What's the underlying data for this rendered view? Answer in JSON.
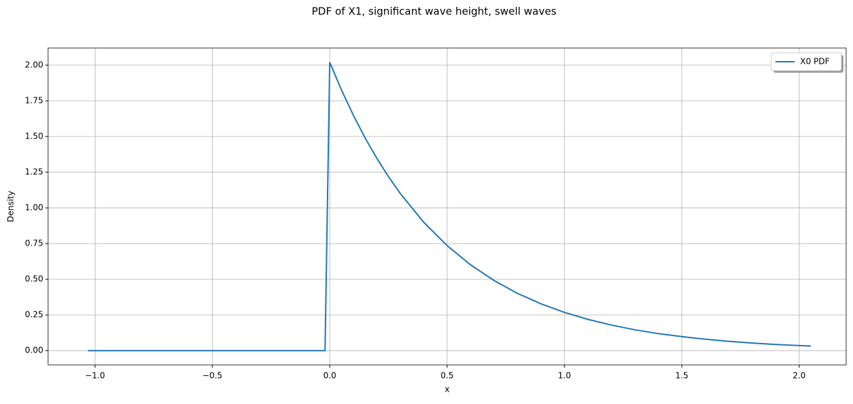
{
  "chart_data": {
    "type": "line",
    "title": "PDF of X1, significant wave height, swell waves",
    "x_label": "x",
    "y_label": "Density",
    "x": [
      -1.03,
      -0.5,
      -0.02,
      0.0,
      0.05,
      0.1,
      0.15,
      0.2,
      0.25,
      0.3,
      0.4,
      0.5,
      0.6,
      0.7,
      0.8,
      0.9,
      1.0,
      1.1,
      1.2,
      1.3,
      1.4,
      1.5,
      1.6,
      1.7,
      1.8,
      1.9,
      2.05
    ],
    "series": [
      {
        "name": "X0 PDF",
        "color": "#1f77b4",
        "values": [
          0,
          0,
          0,
          2.02,
          1.826,
          1.651,
          1.492,
          1.349,
          1.219,
          1.102,
          0.9,
          0.736,
          0.601,
          0.491,
          0.401,
          0.328,
          0.268,
          0.219,
          0.179,
          0.146,
          0.119,
          0.098,
          0.08,
          0.065,
          0.053,
          0.043,
          0.032
        ]
      }
    ],
    "xlim": [
      -1.2,
      2.2
    ],
    "ylim": [
      -0.1,
      2.12
    ],
    "xticks": [
      {
        "value": -1,
        "label": "−1.0"
      },
      {
        "value": -0.5,
        "label": "−0.5"
      },
      {
        "value": 0,
        "label": "0.0"
      },
      {
        "value": 0.5,
        "label": "0.5"
      },
      {
        "value": 1,
        "label": "1.0"
      },
      {
        "value": 1.5,
        "label": "1.5"
      },
      {
        "value": 2,
        "label": "2.0"
      }
    ],
    "yticks": [
      {
        "value": 0,
        "label": "0.00"
      },
      {
        "value": 0.25,
        "label": "0.25"
      },
      {
        "value": 0.5,
        "label": "0.50"
      },
      {
        "value": 0.75,
        "label": "0.75"
      },
      {
        "value": 1,
        "label": "1.00"
      },
      {
        "value": 1.25,
        "label": "1.25"
      },
      {
        "value": 1.5,
        "label": "1.50"
      },
      {
        "value": 1.75,
        "label": "1.75"
      },
      {
        "value": 2,
        "label": "2.00"
      }
    ],
    "grid": true,
    "legend": "upper right"
  }
}
